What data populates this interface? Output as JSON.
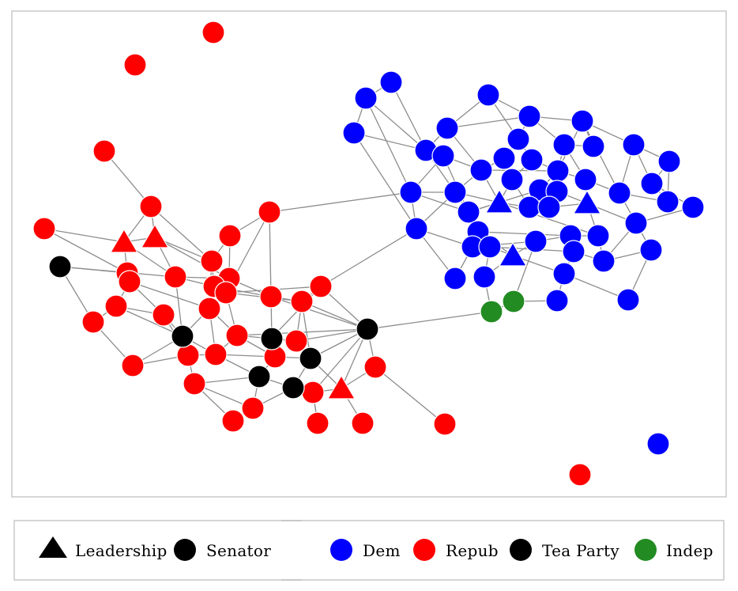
{
  "legend": {
    "shape_items": [
      {
        "label": "Leadership",
        "symbol": "triangle",
        "color": "#000000"
      },
      {
        "label": "Senator",
        "symbol": "circle",
        "color": "#000000"
      }
    ],
    "color_items": [
      {
        "label": "Dem",
        "color": "#0000ff"
      },
      {
        "label": "Repub",
        "color": "#ff0000"
      },
      {
        "label": "Tea Party",
        "color": "#000000"
      },
      {
        "label": "Indep",
        "color": "#228b22"
      }
    ]
  },
  "colors": {
    "dem": "#0000ff",
    "repub": "#ff0000",
    "tea_party": "#000000",
    "indep": "#228b22",
    "edge": "#8c8c8c",
    "frame": "#c8c8c8"
  }
}
